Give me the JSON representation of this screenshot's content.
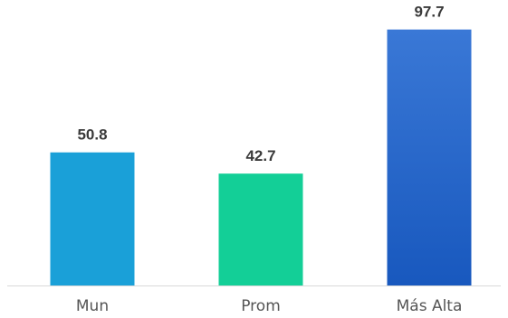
{
  "chart_data": {
    "type": "bar",
    "categories": [
      "Mun",
      "Prom",
      "Más Alta"
    ],
    "values": [
      50.8,
      42.7,
      97.7
    ],
    "value_labels": [
      "50.8",
      "42.7",
      "97.7"
    ],
    "title": "",
    "xlabel": "",
    "ylabel": "",
    "ylim": [
      0,
      100
    ],
    "grid": false,
    "legend": "none",
    "colors": {
      "Mun": "#1aa0d8",
      "Prom": "#13cf97",
      "Más Alta_top": "#3a78d6",
      "Más Alta_bottom": "#1858be",
      "axis": "#d9d9d9"
    }
  }
}
